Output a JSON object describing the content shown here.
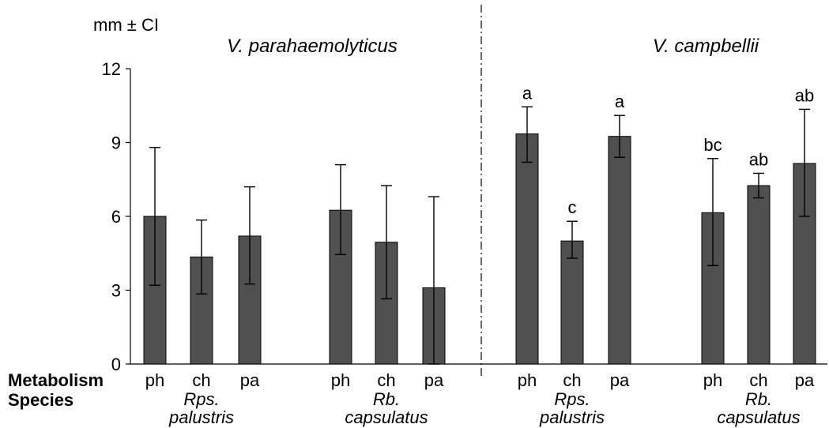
{
  "chart_data": {
    "type": "bar",
    "ylabel": "mm ± CI",
    "ylim": [
      0,
      12
    ],
    "yticks": [
      0,
      3,
      6,
      9,
      12
    ],
    "row_labels": {
      "metabolism": "Metabolism",
      "species": "Species"
    },
    "bar_color": "#505050",
    "panels": [
      {
        "title": "V. parahaemolyticus",
        "groups": [
          {
            "species": [
              "Rps.",
              "palustris"
            ],
            "bars": [
              {
                "metabolism": "ph",
                "value": 6.0,
                "ci_low": 3.2,
                "ci_high": 8.8,
                "letter": ""
              },
              {
                "metabolism": "ch",
                "value": 4.35,
                "ci_low": 2.85,
                "ci_high": 5.85,
                "letter": ""
              },
              {
                "metabolism": "pa",
                "value": 5.2,
                "ci_low": 3.25,
                "ci_high": 7.2,
                "letter": ""
              }
            ]
          },
          {
            "species": [
              "Rb.",
              "capsulatus"
            ],
            "bars": [
              {
                "metabolism": "ph",
                "value": 6.25,
                "ci_low": 4.45,
                "ci_high": 8.1,
                "letter": ""
              },
              {
                "metabolism": "ch",
                "value": 4.95,
                "ci_low": 2.65,
                "ci_high": 7.25,
                "letter": ""
              },
              {
                "metabolism": "pa",
                "value": 3.1,
                "ci_low": 0.0,
                "ci_high": 6.8,
                "letter": ""
              }
            ]
          }
        ]
      },
      {
        "title": "V. campbellii",
        "groups": [
          {
            "species": [
              "Rps.",
              "palustris"
            ],
            "bars": [
              {
                "metabolism": "ph",
                "value": 9.35,
                "ci_low": 8.2,
                "ci_high": 10.45,
                "letter": "a"
              },
              {
                "metabolism": "ch",
                "value": 5.0,
                "ci_low": 4.3,
                "ci_high": 5.8,
                "letter": "c"
              },
              {
                "metabolism": "pa",
                "value": 9.25,
                "ci_low": 8.4,
                "ci_high": 10.1,
                "letter": "a"
              }
            ]
          },
          {
            "species": [
              "Rb.",
              "capsulatus"
            ],
            "bars": [
              {
                "metabolism": "ph",
                "value": 6.15,
                "ci_low": 4.0,
                "ci_high": 8.35,
                "letter": "bc"
              },
              {
                "metabolism": "ch",
                "value": 7.25,
                "ci_low": 6.75,
                "ci_high": 7.75,
                "letter": "ab"
              },
              {
                "metabolism": "pa",
                "value": 8.15,
                "ci_low": 6.0,
                "ci_high": 10.35,
                "letter": "ab"
              }
            ]
          }
        ]
      }
    ]
  }
}
